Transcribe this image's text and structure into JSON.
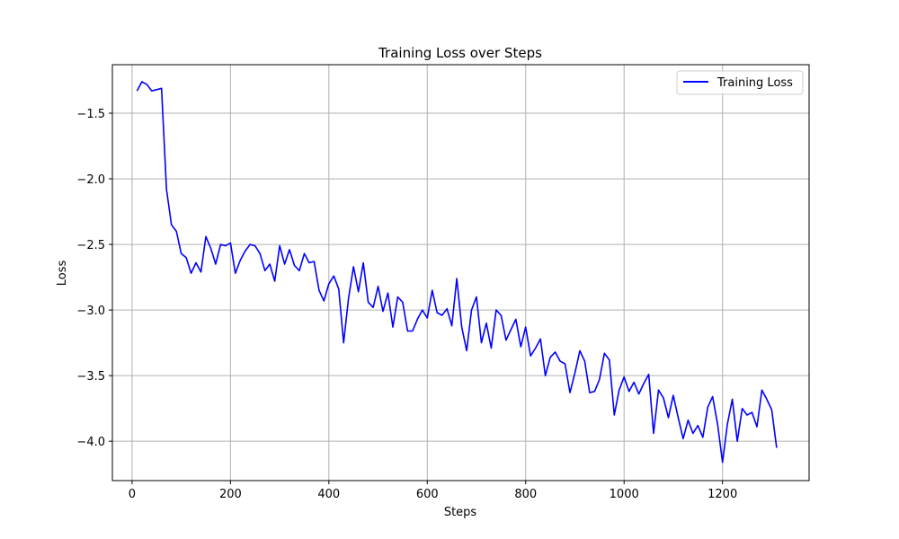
{
  "chart_data": {
    "type": "line",
    "title": "Training Loss over Steps",
    "xlabel": "Steps",
    "ylabel": "Loss",
    "xlim": [
      -40,
      1376
    ],
    "ylim": [
      -4.3,
      -1.13
    ],
    "xticks": [
      0,
      200,
      400,
      600,
      800,
      1000,
      1200
    ],
    "xtick_labels": [
      "0",
      "200",
      "400",
      "600",
      "800",
      "1000",
      "1200"
    ],
    "yticks": [
      -1.5,
      -2.0,
      -2.5,
      -3.0,
      -3.5,
      -4.0
    ],
    "ytick_labels": [
      "−1.5",
      "−2.0",
      "−2.5",
      "−3.0",
      "−3.5",
      "−4.0"
    ],
    "grid": true,
    "legend_position": "top-right",
    "series": [
      {
        "name": "Training Loss",
        "color": "#0000ff",
        "x": [
          10,
          20,
          30,
          40,
          50,
          60,
          70,
          80,
          90,
          100,
          110,
          120,
          130,
          140,
          150,
          160,
          170,
          180,
          190,
          200,
          210,
          220,
          230,
          240,
          250,
          260,
          270,
          280,
          290,
          300,
          310,
          320,
          330,
          340,
          350,
          360,
          370,
          380,
          390,
          400,
          410,
          420,
          430,
          440,
          450,
          460,
          470,
          480,
          490,
          500,
          510,
          520,
          530,
          540,
          550,
          560,
          570,
          580,
          590,
          600,
          610,
          620,
          630,
          640,
          650,
          660,
          670,
          680,
          690,
          700,
          710,
          720,
          730,
          740,
          750,
          760,
          770,
          780,
          790,
          800,
          810,
          820,
          830,
          840,
          850,
          860,
          870,
          880,
          890,
          900,
          910,
          920,
          930,
          940,
          950,
          960,
          970,
          980,
          990,
          1000,
          1010,
          1020,
          1030,
          1040,
          1050,
          1060,
          1070,
          1080,
          1090,
          1100,
          1110,
          1120,
          1130,
          1140,
          1150,
          1160,
          1170,
          1180,
          1190,
          1200,
          1210,
          1220,
          1230,
          1240,
          1250,
          1260,
          1270,
          1280,
          1290,
          1300,
          1310
        ],
        "y": [
          -1.33,
          -1.26,
          -1.28,
          -1.33,
          -1.32,
          -1.31,
          -2.08,
          -2.35,
          -2.4,
          -2.57,
          -2.6,
          -2.72,
          -2.64,
          -2.71,
          -2.44,
          -2.53,
          -2.65,
          -2.5,
          -2.51,
          -2.49,
          -2.72,
          -2.62,
          -2.55,
          -2.5,
          -2.51,
          -2.57,
          -2.7,
          -2.65,
          -2.78,
          -2.51,
          -2.65,
          -2.54,
          -2.66,
          -2.7,
          -2.57,
          -2.64,
          -2.63,
          -2.85,
          -2.93,
          -2.8,
          -2.74,
          -2.84,
          -3.25,
          -2.91,
          -2.67,
          -2.86,
          -2.64,
          -2.94,
          -2.98,
          -2.82,
          -3.01,
          -2.87,
          -3.13,
          -2.9,
          -2.94,
          -3.16,
          -3.16,
          -3.07,
          -3.0,
          -3.06,
          -2.85,
          -3.02,
          -3.04,
          -2.99,
          -3.12,
          -2.76,
          -3.13,
          -3.31,
          -3.0,
          -2.9,
          -3.25,
          -3.1,
          -3.29,
          -3.0,
          -3.04,
          -3.23,
          -3.15,
          -3.07,
          -3.28,
          -3.13,
          -3.35,
          -3.29,
          -3.22,
          -3.5,
          -3.36,
          -3.32,
          -3.39,
          -3.41,
          -3.63,
          -3.48,
          -3.31,
          -3.39,
          -3.63,
          -3.62,
          -3.53,
          -3.33,
          -3.38,
          -3.8,
          -3.61,
          -3.51,
          -3.62,
          -3.55,
          -3.64,
          -3.56,
          -3.49,
          -3.94,
          -3.61,
          -3.67,
          -3.82,
          -3.65,
          -3.82,
          -3.98,
          -3.84,
          -3.94,
          -3.88,
          -3.97,
          -3.74,
          -3.66,
          -3.87,
          -4.16,
          -3.87,
          -3.68,
          -4.0,
          -3.75,
          -3.8,
          -3.78,
          -3.89,
          -3.61,
          -3.68,
          -3.76,
          -4.05
        ]
      }
    ]
  }
}
